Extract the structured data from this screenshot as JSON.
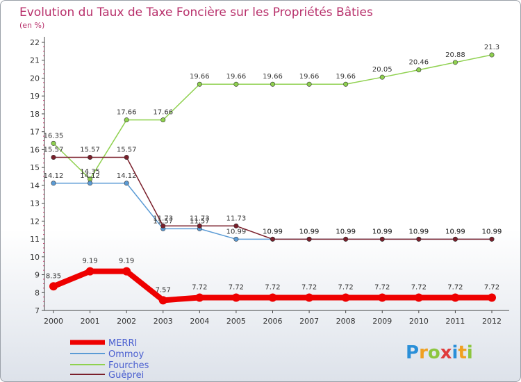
{
  "chart_data": {
    "type": "line",
    "title": "Evolution du Taux de Taxe Foncière sur les Propriétés Bâties",
    "subtitle": "(en %)",
    "xlabel": "",
    "ylabel": "",
    "ylim": [
      7,
      22
    ],
    "yticks": [
      "7",
      "8",
      "9",
      "10",
      "11",
      "12",
      "13",
      "14",
      "15",
      "16",
      "17",
      "18",
      "19",
      "20",
      "21",
      "22"
    ],
    "grid": false,
    "legend_position": "bottom-left",
    "categories": [
      "2000",
      "2001",
      "2002",
      "2003",
      "2004",
      "2005",
      "2006",
      "2007",
      "2008",
      "2009",
      "2010",
      "2011",
      "2012"
    ],
    "series": [
      {
        "name": "MERRI",
        "color": "#ee0000",
        "values": [
          8.35,
          9.19,
          9.19,
          7.57,
          7.72,
          7.72,
          7.72,
          7.72,
          7.72,
          7.72,
          7.72,
          7.72,
          7.72
        ],
        "labels": [
          "8.35",
          "9.19",
          "9.19",
          "7.57",
          "7.72",
          "7.72",
          "7.72",
          "7.72",
          "7.72",
          "7.72",
          "7.72",
          "7.72",
          "7.72"
        ]
      },
      {
        "name": "Ommoy",
        "color": "#5b9bd5",
        "values": [
          14.12,
          14.12,
          14.12,
          11.57,
          11.57,
          10.99,
          10.99,
          10.99,
          10.99,
          10.99,
          10.99,
          10.99,
          10.99
        ],
        "labels": [
          "14.12",
          "14.12",
          "14.12",
          "11.57",
          "11.57",
          "10.99",
          "10.99",
          "10.99",
          "10.99",
          "10.99",
          "10.99",
          "10.99",
          "10.99"
        ]
      },
      {
        "name": "Fourches",
        "color": "#8fd14f",
        "values": [
          16.35,
          14.35,
          17.66,
          17.66,
          19.66,
          19.66,
          19.66,
          19.66,
          19.66,
          20.05,
          20.46,
          20.88,
          21.3
        ],
        "labels": [
          "16.35",
          "14.35",
          "17.66",
          "17.66",
          "19.66",
          "19.66",
          "19.66",
          "19.66",
          "19.66",
          "20.05",
          "20.46",
          "20.88",
          "21.3"
        ]
      },
      {
        "name": "Guêprei",
        "color": "#7a1f2b",
        "values": [
          15.57,
          15.57,
          15.57,
          11.73,
          11.73,
          11.73,
          10.99,
          10.99,
          10.99,
          10.99,
          10.99,
          10.99,
          10.99
        ],
        "labels": [
          "15.57",
          "15.57",
          "15.57",
          "11.73",
          "11.73",
          "11.73",
          "10.99",
          "10.99",
          "10.99",
          "10.99",
          "10.99",
          "10.99",
          "10.99"
        ]
      }
    ]
  },
  "logo": {
    "letters": [
      "P",
      "r",
      "o",
      "x",
      "i",
      "t",
      "i"
    ],
    "colors": [
      "#2a8fd8",
      "#f0a020",
      "#8cc63f",
      "#e03c3c",
      "#2a8fd8",
      "#f0a020",
      "#8cc63f"
    ]
  }
}
